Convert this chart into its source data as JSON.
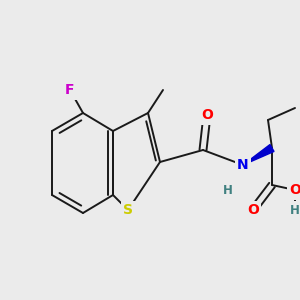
{
  "bg_color": "#ebebeb",
  "bond_color": "#1a1a1a",
  "bond_width": 1.4,
  "atom_colors": {
    "S": "#cccc00",
    "N": "#0000ee",
    "O": "#ff0000",
    "F": "#cc00cc",
    "C": "#1a1a1a",
    "H": "#408080"
  },
  "font_size_atom": 10,
  "font_size_small": 8.5
}
